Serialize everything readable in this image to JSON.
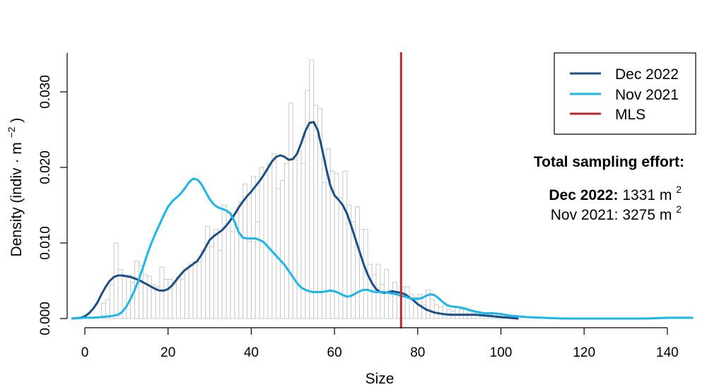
{
  "chart_data": {
    "type": "histogram-with-density-lines",
    "xlabel": "Size",
    "ylabel": {
      "prefix": "Density (indiv",
      "dot": "·",
      "unit": "m",
      "exp": "−2",
      "suffix": ")"
    },
    "xlim": [
      -3,
      146
    ],
    "ylim": [
      0,
      0.0355
    ],
    "x_ticks": [
      0,
      20,
      40,
      60,
      80,
      100,
      120,
      140
    ],
    "y_ticks": [
      0.0,
      0.01,
      0.02,
      0.03
    ],
    "y_tick_labels": [
      "0.000",
      "0.010",
      "0.020",
      "0.030"
    ],
    "grid": false,
    "histogram": {
      "bin_width": 1,
      "bar_stroke": "#c8c8c8",
      "bars": [
        [
          4,
          0.002
        ],
        [
          5,
          0.0025
        ],
        [
          6,
          0.0045
        ],
        [
          7,
          0.01
        ],
        [
          8,
          0.0065
        ],
        [
          9,
          0.0055
        ],
        [
          10,
          0.0058
        ],
        [
          11,
          0.0048
        ],
        [
          12,
          0.0076
        ],
        [
          13,
          0.007
        ],
        [
          14,
          0.0058
        ],
        [
          15,
          0.0056
        ],
        [
          16,
          0.0045
        ],
        [
          17,
          0.0042
        ],
        [
          18,
          0.0068
        ],
        [
          19,
          0.0052
        ],
        [
          20,
          0.0052
        ],
        [
          21,
          0.0045
        ],
        [
          22,
          0.0055
        ],
        [
          23,
          0.0052
        ],
        [
          24,
          0.0065
        ],
        [
          25,
          0.0072
        ],
        [
          26,
          0.0075
        ],
        [
          27,
          0.0075
        ],
        [
          28,
          0.009
        ],
        [
          29,
          0.0122
        ],
        [
          30,
          0.0095
        ],
        [
          31,
          0.0118
        ],
        [
          32,
          0.009
        ],
        [
          33,
          0.015
        ],
        [
          34,
          0.014
        ],
        [
          35,
          0.0115
        ],
        [
          36,
          0.014
        ],
        [
          37,
          0.0155
        ],
        [
          38,
          0.0178
        ],
        [
          39,
          0.0102
        ],
        [
          40,
          0.0188
        ],
        [
          41,
          0.0128
        ],
        [
          42,
          0.02
        ],
        [
          43,
          0.019
        ],
        [
          44,
          0.0205
        ],
        [
          45,
          0.0218
        ],
        [
          46,
          0.0172
        ],
        [
          47,
          0.0183
        ],
        [
          48,
          0.0205
        ],
        [
          49,
          0.0285
        ],
        [
          50,
          0.021
        ],
        [
          51,
          0.0222
        ],
        [
          52,
          0.0205
        ],
        [
          53,
          0.0302
        ],
        [
          54,
          0.0342
        ],
        [
          55,
          0.0282
        ],
        [
          56,
          0.0278
        ],
        [
          57,
          0.018
        ],
        [
          58,
          0.0225
        ],
        [
          59,
          0.0195
        ],
        [
          60,
          0.0192
        ],
        [
          61,
          0.016
        ],
        [
          62,
          0.0195
        ],
        [
          63,
          0.015
        ],
        [
          64,
          0.0128
        ],
        [
          65,
          0.0148
        ],
        [
          66,
          0.0118
        ],
        [
          67,
          0.0118
        ],
        [
          68,
          0.0072
        ],
        [
          69,
          0.0058
        ],
        [
          70,
          0.0072
        ],
        [
          71,
          0.0045
        ],
        [
          72,
          0.0065
        ],
        [
          73,
          0.0038
        ],
        [
          74,
          0.0048
        ],
        [
          75,
          0.0035
        ],
        [
          76,
          0.0042
        ],
        [
          77,
          0.0042
        ],
        [
          78,
          0.0032
        ],
        [
          79,
          0.0028
        ],
        [
          80,
          0.0032
        ],
        [
          81,
          0.0018
        ],
        [
          82,
          0.0038
        ],
        [
          83,
          0.0025
        ],
        [
          84,
          0.0018
        ],
        [
          85,
          0.0015
        ],
        [
          86,
          0.0018
        ],
        [
          87,
          0.0012
        ],
        [
          88,
          0.001
        ],
        [
          89,
          0.0015
        ],
        [
          90,
          0.0012
        ],
        [
          91,
          0.0015
        ],
        [
          92,
          0.001
        ],
        [
          93,
          0.0008
        ],
        [
          94,
          0.0008
        ],
        [
          95,
          0.0005
        ],
        [
          96,
          0.0005
        ],
        [
          97,
          0.0005
        ],
        [
          98,
          0.0008
        ],
        [
          99,
          0.0003
        ],
        [
          100,
          0.0003
        ],
        [
          101,
          0.0003
        ],
        [
          102,
          0.0003
        ],
        [
          103,
          0.0003
        ]
      ]
    },
    "series": [
      {
        "name": "Dec 2022",
        "color": "#1b4f85",
        "points": [
          [
            -3,
            0.0
          ],
          [
            -1,
            0.0001
          ],
          [
            0,
            0.0003
          ],
          [
            1,
            0.0007
          ],
          [
            2,
            0.0013
          ],
          [
            3,
            0.0021
          ],
          [
            4,
            0.0032
          ],
          [
            5,
            0.0042
          ],
          [
            6,
            0.005
          ],
          [
            7,
            0.0055
          ],
          [
            8,
            0.0057
          ],
          [
            9,
            0.0057
          ],
          [
            10,
            0.0056
          ],
          [
            11,
            0.0055
          ],
          [
            12,
            0.0053
          ],
          [
            13,
            0.0051
          ],
          [
            14,
            0.0048
          ],
          [
            15,
            0.0045
          ],
          [
            16,
            0.0042
          ],
          [
            17,
            0.0039
          ],
          [
            18,
            0.0037
          ],
          [
            19,
            0.0037
          ],
          [
            20,
            0.0039
          ],
          [
            21,
            0.0044
          ],
          [
            22,
            0.0051
          ],
          [
            23,
            0.0058
          ],
          [
            24,
            0.0064
          ],
          [
            25,
            0.0068
          ],
          [
            26,
            0.0072
          ],
          [
            27,
            0.0076
          ],
          [
            28,
            0.0084
          ],
          [
            29,
            0.0094
          ],
          [
            30,
            0.0104
          ],
          [
            31,
            0.0109
          ],
          [
            32,
            0.0113
          ],
          [
            33,
            0.0117
          ],
          [
            34,
            0.0123
          ],
          [
            35,
            0.013
          ],
          [
            36,
            0.0138
          ],
          [
            37,
            0.0147
          ],
          [
            38,
            0.0155
          ],
          [
            39,
            0.0162
          ],
          [
            40,
            0.0168
          ],
          [
            41,
            0.0175
          ],
          [
            42,
            0.0182
          ],
          [
            43,
            0.019
          ],
          [
            44,
            0.0199
          ],
          [
            45,
            0.0208
          ],
          [
            46,
            0.0214
          ],
          [
            47,
            0.0216
          ],
          [
            48,
            0.0214
          ],
          [
            49,
            0.021
          ],
          [
            50,
            0.0211
          ],
          [
            51,
            0.0218
          ],
          [
            52,
            0.0232
          ],
          [
            53,
            0.0248
          ],
          [
            54,
            0.0259
          ],
          [
            55,
            0.026
          ],
          [
            56,
            0.0249
          ],
          [
            57,
            0.0225
          ],
          [
            58,
            0.0199
          ],
          [
            59,
            0.0176
          ],
          [
            60,
            0.0163
          ],
          [
            61,
            0.0157
          ],
          [
            62,
            0.015
          ],
          [
            63,
            0.0139
          ],
          [
            64,
            0.0123
          ],
          [
            65,
            0.0106
          ],
          [
            66,
            0.0089
          ],
          [
            67,
            0.0072
          ],
          [
            68,
            0.0058
          ],
          [
            69,
            0.0047
          ],
          [
            70,
            0.0039
          ],
          [
            71,
            0.0035
          ],
          [
            72,
            0.0034
          ],
          [
            73,
            0.0035
          ],
          [
            74,
            0.0036
          ],
          [
            75,
            0.0035
          ],
          [
            76,
            0.0034
          ],
          [
            77,
            0.0032
          ],
          [
            78,
            0.0028
          ],
          [
            79,
            0.0024
          ],
          [
            80,
            0.0019
          ],
          [
            82,
            0.0012
          ],
          [
            84,
            0.0008
          ],
          [
            86,
            0.0006
          ],
          [
            88,
            0.0005
          ],
          [
            90,
            0.0005
          ],
          [
            92,
            0.0005
          ],
          [
            94,
            0.0005
          ],
          [
            96,
            0.0004
          ],
          [
            98,
            0.0003
          ],
          [
            100,
            0.0002
          ],
          [
            102,
            0.0001
          ],
          [
            104,
            0.0
          ]
        ]
      },
      {
        "name": "Nov 2021",
        "color": "#1ab6ec",
        "points": [
          [
            -3,
            0.0
          ],
          [
            0,
            0.0001
          ],
          [
            2,
            0.0001
          ],
          [
            4,
            0.0002
          ],
          [
            6,
            0.0003
          ],
          [
            8,
            0.0005
          ],
          [
            9,
            0.0009
          ],
          [
            10,
            0.0016
          ],
          [
            11,
            0.0026
          ],
          [
            12,
            0.0038
          ],
          [
            13,
            0.0052
          ],
          [
            14,
            0.0068
          ],
          [
            15,
            0.0085
          ],
          [
            16,
            0.01
          ],
          [
            17,
            0.0113
          ],
          [
            18,
            0.0125
          ],
          [
            19,
            0.0137
          ],
          [
            20,
            0.0148
          ],
          [
            21,
            0.0155
          ],
          [
            22,
            0.016
          ],
          [
            23,
            0.0165
          ],
          [
            24,
            0.0172
          ],
          [
            25,
            0.018
          ],
          [
            26,
            0.0185
          ],
          [
            27,
            0.0184
          ],
          [
            28,
            0.0178
          ],
          [
            29,
            0.0168
          ],
          [
            30,
            0.0158
          ],
          [
            31,
            0.0151
          ],
          [
            32,
            0.0147
          ],
          [
            33,
            0.0145
          ],
          [
            34,
            0.0143
          ],
          [
            35,
            0.0139
          ],
          [
            36,
            0.0128
          ],
          [
            37,
            0.0114
          ],
          [
            38,
            0.0107
          ],
          [
            39,
            0.0106
          ],
          [
            40,
            0.0106
          ],
          [
            41,
            0.0106
          ],
          [
            42,
            0.0104
          ],
          [
            43,
            0.0101
          ],
          [
            44,
            0.0095
          ],
          [
            45,
            0.0089
          ],
          [
            46,
            0.0083
          ],
          [
            47,
            0.0077
          ],
          [
            48,
            0.0071
          ],
          [
            49,
            0.0063
          ],
          [
            50,
            0.0055
          ],
          [
            51,
            0.0047
          ],
          [
            52,
            0.0041
          ],
          [
            53,
            0.0038
          ],
          [
            54,
            0.0036
          ],
          [
            55,
            0.0035
          ],
          [
            56,
            0.0035
          ],
          [
            57,
            0.0035
          ],
          [
            58,
            0.0036
          ],
          [
            59,
            0.0037
          ],
          [
            60,
            0.0036
          ],
          [
            61,
            0.0034
          ],
          [
            62,
            0.0031
          ],
          [
            63,
            0.0029
          ],
          [
            64,
            0.003
          ],
          [
            65,
            0.0033
          ],
          [
            66,
            0.0036
          ],
          [
            67,
            0.0038
          ],
          [
            68,
            0.0038
          ],
          [
            69,
            0.0036
          ],
          [
            70,
            0.0035
          ],
          [
            71,
            0.0035
          ],
          [
            72,
            0.0035
          ],
          [
            73,
            0.0034
          ],
          [
            74,
            0.0033
          ],
          [
            75,
            0.0032
          ],
          [
            76,
            0.003
          ],
          [
            77,
            0.0029
          ],
          [
            78,
            0.0027
          ],
          [
            79,
            0.0026
          ],
          [
            80,
            0.0026
          ],
          [
            81,
            0.0027
          ],
          [
            82,
            0.003
          ],
          [
            83,
            0.0032
          ],
          [
            84,
            0.0031
          ],
          [
            85,
            0.0027
          ],
          [
            86,
            0.0022
          ],
          [
            87,
            0.0018
          ],
          [
            88,
            0.0016
          ],
          [
            90,
            0.0015
          ],
          [
            92,
            0.0012
          ],
          [
            94,
            0.0009
          ],
          [
            96,
            0.0007
          ],
          [
            98,
            0.0007
          ],
          [
            100,
            0.0006
          ],
          [
            102,
            0.0004
          ],
          [
            104,
            0.0003
          ],
          [
            106,
            0.0002
          ],
          [
            110,
            0.0001
          ],
          [
            115,
            0.0
          ],
          [
            120,
            0.0
          ],
          [
            125,
            0.0
          ],
          [
            130,
            0.0
          ],
          [
            135,
            0.0
          ],
          [
            140,
            0.0001
          ],
          [
            146,
            0.0001
          ]
        ]
      }
    ],
    "reference_line": {
      "name": "MLS",
      "x": 76,
      "color": "#c0272d"
    },
    "legend": {
      "placement": "top-right",
      "entries": [
        {
          "label": "Dec 2022",
          "color": "#1b4f85"
        },
        {
          "label": "Nov 2021",
          "color": "#1ab6ec"
        },
        {
          "label": "MLS",
          "color": "#c0272d"
        }
      ]
    },
    "annotation": {
      "heading": "Total sampling effort:",
      "lines": [
        {
          "label": "Dec 2022:",
          "value": "1331 m",
          "exp": "2",
          "bold_label": true
        },
        {
          "label": "Nov 2021:",
          "value": "3275 m",
          "exp": "2",
          "bold_label": false
        }
      ]
    }
  }
}
